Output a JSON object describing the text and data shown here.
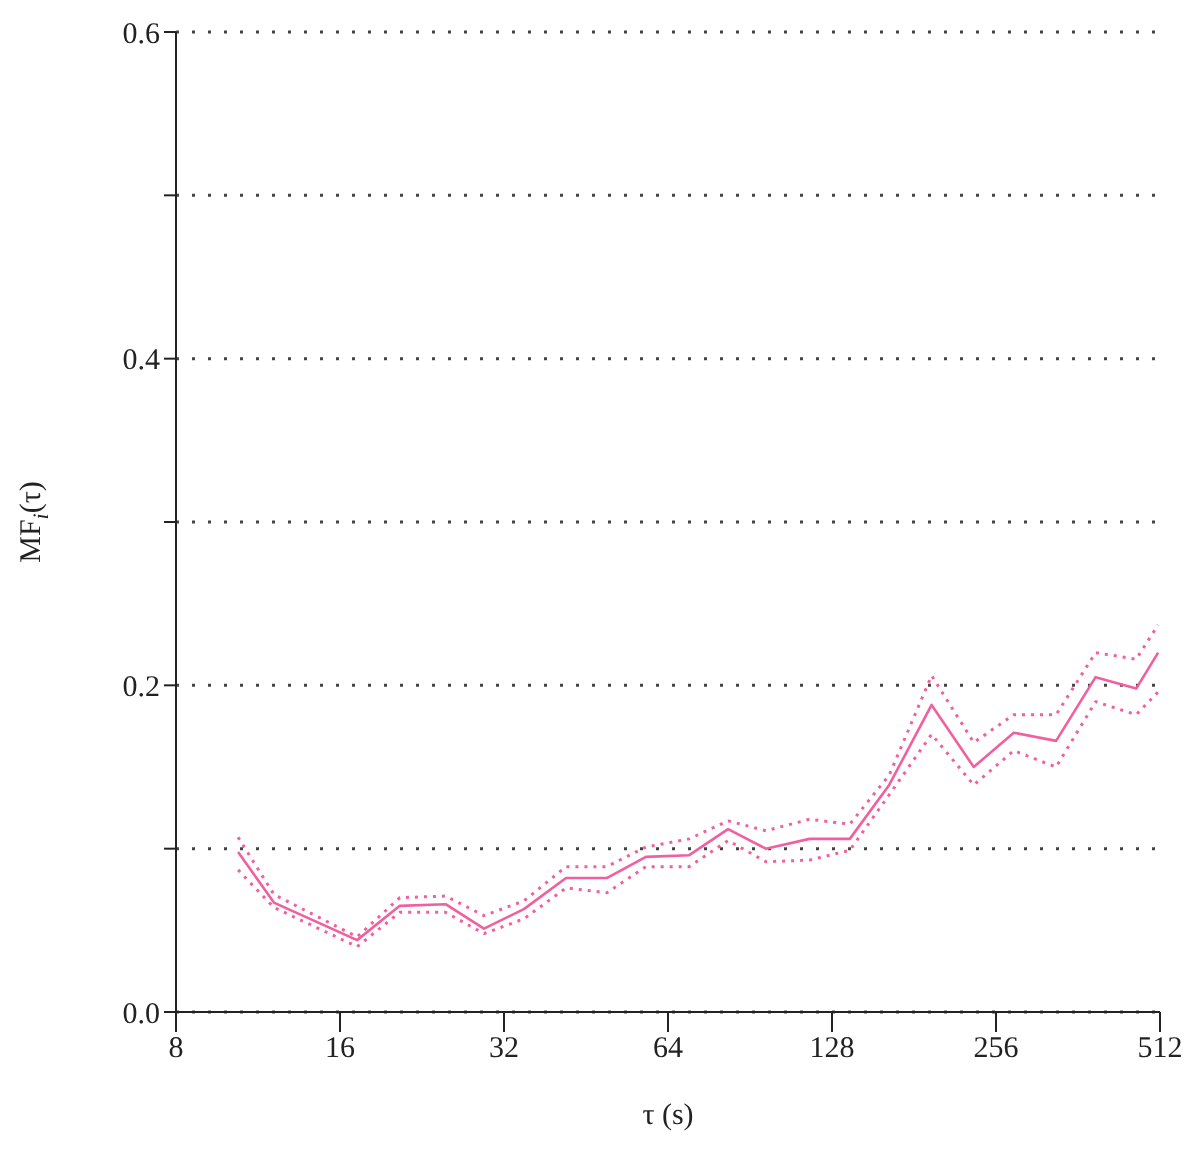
{
  "chart_data": {
    "type": "line",
    "xlabel": "τ (s)",
    "ylabel": "MF$_{i}$(τ)",
    "log": "x",
    "grid": "y",
    "marker": "none",
    "x": [
      10.4,
      12.1,
      17.2,
      20.6,
      25.0,
      29.4,
      34.8,
      41.6,
      49.4,
      58.3,
      70.0,
      82.5,
      96.8,
      116.4,
      138,
      163,
      195,
      233,
      276,
      330,
      390,
      463,
      508
    ],
    "xlim": [
      8,
      512
    ],
    "xticks": [
      8,
      16,
      32,
      64,
      128,
      256,
      512
    ],
    "ylim": [
      0,
      0.6
    ],
    "yticks": [
      {
        "value": 0,
        "label": "0.0"
      },
      {
        "value": 0.1,
        "label": null
      },
      {
        "value": 0.2,
        "label": "0.2"
      },
      {
        "value": 0.3,
        "label": null
      },
      {
        "value": 0.4,
        "label": "0.4"
      },
      {
        "value": 0.5,
        "label": null
      },
      {
        "value": 0.6,
        "label": "0.6"
      }
    ],
    "series": [
      {
        "color": "#f0609e",
        "line_style": "solid",
        "values": [
          0.098,
          0.067,
          0.044,
          0.065,
          0.066,
          0.051,
          0.063,
          0.082,
          0.082,
          0.095,
          0.096,
          0.112,
          0.1,
          0.106,
          0.106,
          0.139,
          0.188,
          0.15,
          0.171,
          0.166,
          0.205,
          0.198,
          0.22
        ]
      },
      {
        "color": "#f0609e",
        "line_style": "dotted",
        "values": [
          0.087,
          0.064,
          0.04,
          0.061,
          0.061,
          0.048,
          0.057,
          0.076,
          0.073,
          0.089,
          0.089,
          0.105,
          0.092,
          0.093,
          0.099,
          0.133,
          0.17,
          0.139,
          0.16,
          0.15,
          0.19,
          0.182,
          0.196
        ]
      },
      {
        "color": "#f0609e",
        "line_style": "dotted",
        "values": [
          0.107,
          0.072,
          0.046,
          0.07,
          0.071,
          0.059,
          0.068,
          0.089,
          0.089,
          0.101,
          0.106,
          0.117,
          0.111,
          0.118,
          0.115,
          0.145,
          0.206,
          0.165,
          0.182,
          0.182,
          0.22,
          0.216,
          0.237
        ]
      }
    ]
  }
}
